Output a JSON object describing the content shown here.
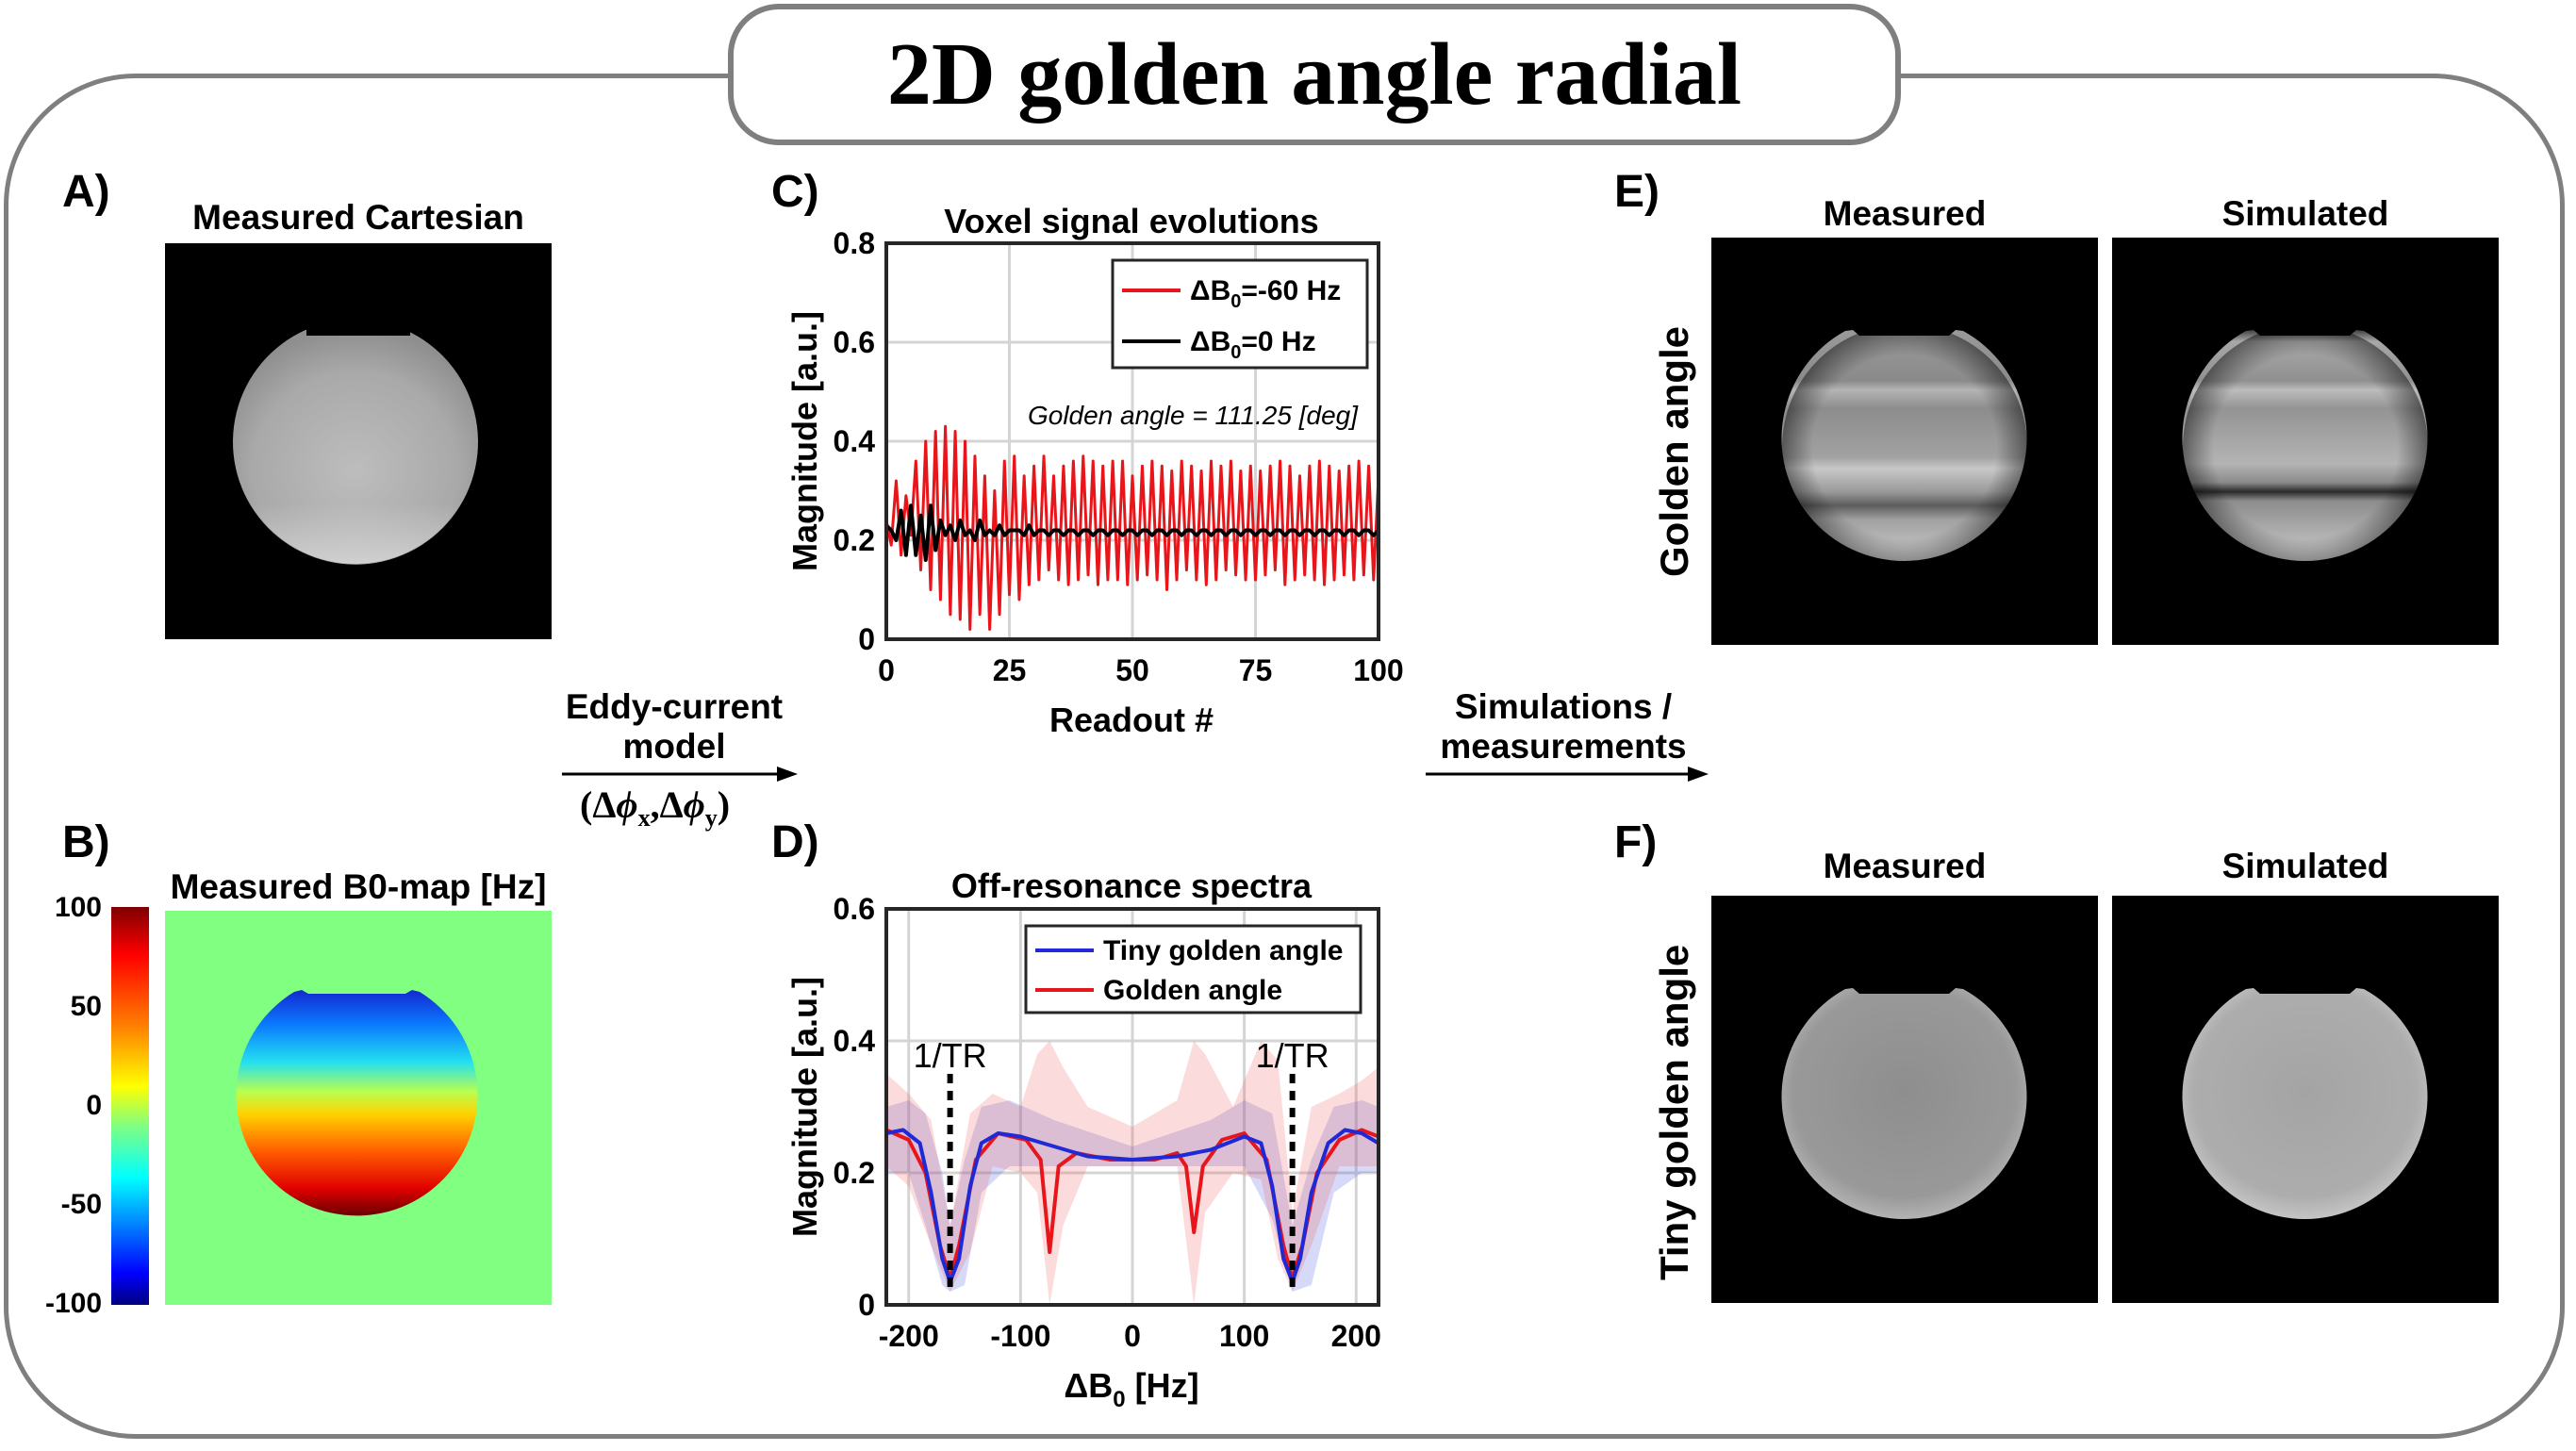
{
  "title": "2D golden angle radial",
  "panels": {
    "A": {
      "letter": "A)",
      "title": "Measured Cartesian"
    },
    "B": {
      "letter": "B)",
      "title": "Measured B0-map [Hz]",
      "colorbar_ticks": [
        "100",
        "50",
        "0",
        "-50",
        "-100"
      ]
    },
    "C": {
      "letter": "C)"
    },
    "D": {
      "letter": "D)"
    },
    "E": {
      "letter": "E)",
      "col1": "Measured",
      "col2": "Simulated",
      "row_label": "Golden angle"
    },
    "F": {
      "letter": "F)",
      "col1": "Measured",
      "col2": "Simulated",
      "row_label": "Tiny golden angle"
    }
  },
  "arrows": {
    "model_line1": "Eddy-current",
    "model_line2": "model",
    "model_params": "(Δφx,Δφy)",
    "sim_line1": "Simulations /",
    "sim_line2": "measurements"
  },
  "chart_data": [
    {
      "type": "line",
      "title": "Voxel signal evolutions",
      "xlabel": "Readout #",
      "ylabel": "Magnitude [a.u.]",
      "xlim": [
        0,
        100
      ],
      "ylim": [
        0,
        0.8
      ],
      "xticks": [
        0,
        25,
        50,
        75,
        100
      ],
      "yticks": [
        0,
        0.2,
        0.4,
        0.6,
        0.8
      ],
      "grid": true,
      "legend_position": "top-right",
      "annotation": "Golden angle = 111.25 [deg]",
      "series": [
        {
          "name": "ΔB0=-60 Hz",
          "legend_main": "ΔB",
          "legend_sub": "0",
          "legend_tail": "=-60 Hz",
          "color": "#e8161b",
          "values": [
            0.24,
            0.19,
            0.32,
            0.17,
            0.29,
            0.21,
            0.36,
            0.14,
            0.4,
            0.1,
            0.42,
            0.08,
            0.43,
            0.05,
            0.42,
            0.04,
            0.4,
            0.02,
            0.37,
            0.05,
            0.33,
            0.02,
            0.3,
            0.05,
            0.36,
            0.09,
            0.37,
            0.08,
            0.33,
            0.11,
            0.35,
            0.12,
            0.37,
            0.14,
            0.33,
            0.12,
            0.35,
            0.11,
            0.36,
            0.12,
            0.37,
            0.13,
            0.36,
            0.11,
            0.35,
            0.12,
            0.36,
            0.12,
            0.36,
            0.11,
            0.33,
            0.12,
            0.35,
            0.13,
            0.36,
            0.12,
            0.35,
            0.1,
            0.34,
            0.12,
            0.36,
            0.14,
            0.35,
            0.12,
            0.34,
            0.11,
            0.36,
            0.12,
            0.35,
            0.14,
            0.36,
            0.13,
            0.34,
            0.12,
            0.35,
            0.12,
            0.34,
            0.13,
            0.35,
            0.14,
            0.36,
            0.11,
            0.35,
            0.12,
            0.33,
            0.13,
            0.35,
            0.12,
            0.36,
            0.11,
            0.35,
            0.12,
            0.34,
            0.13,
            0.35,
            0.12,
            0.36,
            0.13,
            0.35,
            0.12,
            0.33
          ]
        },
        {
          "name": "ΔB0=0 Hz",
          "legend_main": "ΔB",
          "legend_sub": "0",
          "legend_tail": "=0 Hz",
          "color": "#000000",
          "values": [
            0.23,
            0.22,
            0.2,
            0.26,
            0.17,
            0.27,
            0.17,
            0.25,
            0.16,
            0.27,
            0.18,
            0.24,
            0.21,
            0.23,
            0.2,
            0.24,
            0.21,
            0.22,
            0.2,
            0.24,
            0.21,
            0.22,
            0.21,
            0.23,
            0.21,
            0.22,
            0.22,
            0.22,
            0.21,
            0.23,
            0.21,
            0.22,
            0.22,
            0.21,
            0.22,
            0.22,
            0.21,
            0.22,
            0.22,
            0.21,
            0.22,
            0.22,
            0.21,
            0.22,
            0.22,
            0.21,
            0.22,
            0.22,
            0.21,
            0.22,
            0.22,
            0.21,
            0.22,
            0.22,
            0.21,
            0.22,
            0.22,
            0.21,
            0.22,
            0.22,
            0.21,
            0.22,
            0.22,
            0.21,
            0.22,
            0.22,
            0.21,
            0.22,
            0.22,
            0.21,
            0.22,
            0.22,
            0.21,
            0.22,
            0.22,
            0.21,
            0.22,
            0.22,
            0.21,
            0.22,
            0.22,
            0.21,
            0.22,
            0.22,
            0.21,
            0.22,
            0.22,
            0.21,
            0.22,
            0.22,
            0.21,
            0.22,
            0.22,
            0.21,
            0.22,
            0.22,
            0.21,
            0.22,
            0.22,
            0.21,
            0.22
          ]
        }
      ]
    },
    {
      "type": "line",
      "title": "Off-resonance spectra",
      "xlabel_main": "ΔB",
      "xlabel_sub": "0",
      "xlabel_tail": " [Hz]",
      "ylabel": "Magnitude [a.u.]",
      "xlim": [
        -220,
        220
      ],
      "ylim": [
        0,
        0.6
      ],
      "xticks": [
        -200,
        -100,
        0,
        100,
        200
      ],
      "yticks": [
        0,
        0.2,
        0.4,
        0.6
      ],
      "grid": true,
      "legend_position": "top-right",
      "annotations": [
        {
          "text": "1/TR",
          "x": -163
        },
        {
          "text": "1/TR",
          "x": 143
        }
      ],
      "series": [
        {
          "name": "Tiny golden angle",
          "color": "#1f2ad6",
          "band_color": "rgba(70,80,220,0.22)",
          "points": [
            [
              -220,
              0.26
            ],
            [
              -205,
              0.265
            ],
            [
              -190,
              0.245
            ],
            [
              -180,
              0.17
            ],
            [
              -170,
              0.07
            ],
            [
              -163,
              0.035
            ],
            [
              -155,
              0.07
            ],
            [
              -145,
              0.18
            ],
            [
              -135,
              0.245
            ],
            [
              -120,
              0.26
            ],
            [
              -100,
              0.255
            ],
            [
              -70,
              0.24
            ],
            [
              -40,
              0.225
            ],
            [
              0,
              0.22
            ],
            [
              40,
              0.225
            ],
            [
              70,
              0.235
            ],
            [
              100,
              0.255
            ],
            [
              115,
              0.245
            ],
            [
              125,
              0.18
            ],
            [
              135,
              0.07
            ],
            [
              143,
              0.035
            ],
            [
              150,
              0.07
            ],
            [
              160,
              0.17
            ],
            [
              175,
              0.245
            ],
            [
              190,
              0.265
            ],
            [
              205,
              0.26
            ],
            [
              220,
              0.245
            ]
          ],
          "band": [
            [
              -220,
              0.2,
              0.3
            ],
            [
              -200,
              0.2,
              0.31
            ],
            [
              -185,
              0.12,
              0.29
            ],
            [
              -170,
              0.03,
              0.2
            ],
            [
              -163,
              0.02,
              0.12
            ],
            [
              -150,
              0.03,
              0.22
            ],
            [
              -135,
              0.17,
              0.3
            ],
            [
              -110,
              0.21,
              0.31
            ],
            [
              -70,
              0.21,
              0.28
            ],
            [
              0,
              0.21,
              0.24
            ],
            [
              70,
              0.21,
              0.28
            ],
            [
              100,
              0.21,
              0.31
            ],
            [
              125,
              0.13,
              0.29
            ],
            [
              143,
              0.02,
              0.12
            ],
            [
              160,
              0.03,
              0.22
            ],
            [
              180,
              0.17,
              0.3
            ],
            [
              205,
              0.2,
              0.31
            ],
            [
              220,
              0.2,
              0.3
            ]
          ]
        },
        {
          "name": "Golden angle",
          "color": "#e8161b",
          "band_color": "rgba(235,90,90,0.22)",
          "points": [
            [
              -220,
              0.265
            ],
            [
              -200,
              0.25
            ],
            [
              -185,
              0.2
            ],
            [
              -172,
              0.09
            ],
            [
              -163,
              0.04
            ],
            [
              -155,
              0.09
            ],
            [
              -140,
              0.22
            ],
            [
              -120,
              0.26
            ],
            [
              -95,
              0.25
            ],
            [
              -82,
              0.22
            ],
            [
              -74,
              0.08
            ],
            [
              -66,
              0.21
            ],
            [
              -50,
              0.23
            ],
            [
              -20,
              0.22
            ],
            [
              0,
              0.22
            ],
            [
              20,
              0.22
            ],
            [
              40,
              0.23
            ],
            [
              48,
              0.21
            ],
            [
              55,
              0.11
            ],
            [
              63,
              0.21
            ],
            [
              80,
              0.25
            ],
            [
              100,
              0.26
            ],
            [
              120,
              0.22
            ],
            [
              135,
              0.09
            ],
            [
              143,
              0.04
            ],
            [
              152,
              0.09
            ],
            [
              165,
              0.2
            ],
            [
              185,
              0.25
            ],
            [
              205,
              0.265
            ],
            [
              220,
              0.255
            ]
          ],
          "band": [
            [
              -220,
              0.21,
              0.35
            ],
            [
              -200,
              0.18,
              0.32
            ],
            [
              -180,
              0.09,
              0.28
            ],
            [
              -163,
              0.02,
              0.12
            ],
            [
              -145,
              0.08,
              0.29
            ],
            [
              -125,
              0.21,
              0.32
            ],
            [
              -100,
              0.2,
              0.3
            ],
            [
              -85,
              0.17,
              0.38
            ],
            [
              -74,
              0.0,
              0.4
            ],
            [
              -62,
              0.12,
              0.36
            ],
            [
              -40,
              0.21,
              0.3
            ],
            [
              0,
              0.21,
              0.27
            ],
            [
              40,
              0.21,
              0.31
            ],
            [
              55,
              0.0,
              0.4
            ],
            [
              65,
              0.14,
              0.38
            ],
            [
              90,
              0.2,
              0.3
            ],
            [
              115,
              0.19,
              0.4
            ],
            [
              130,
              0.07,
              0.37
            ],
            [
              143,
              0.02,
              0.14
            ],
            [
              160,
              0.09,
              0.3
            ],
            [
              185,
              0.21,
              0.32
            ],
            [
              205,
              0.21,
              0.34
            ],
            [
              220,
              0.21,
              0.36
            ]
          ]
        }
      ]
    }
  ]
}
